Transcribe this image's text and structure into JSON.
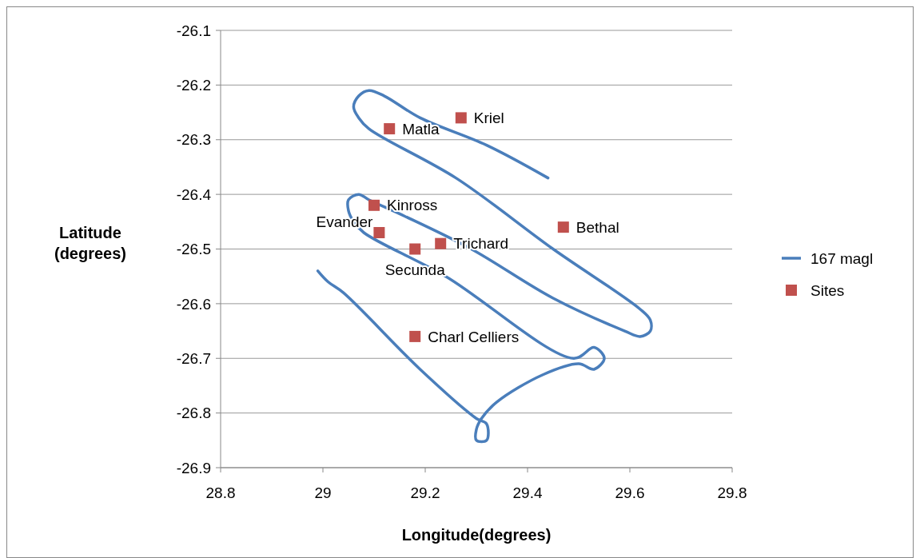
{
  "chart_data": {
    "type": "scatter",
    "xlabel": "Longitude(degrees)",
    "ylabel": "Latitude (degrees)",
    "xlim": [
      28.8,
      29.8
    ],
    "xticks": [
      28.8,
      29,
      29.2,
      29.4,
      29.6,
      29.8
    ],
    "ylim": [
      -26.9,
      -26.1
    ],
    "yticks": [
      -26.9,
      -26.8,
      -26.7,
      -26.6,
      -26.5,
      -26.4,
      -26.3,
      -26.2,
      -26.1
    ],
    "grid": "y",
    "legend": "right",
    "series": [
      {
        "name": "167 magl",
        "type": "line",
        "color": "#4a7ebb",
        "marker": "none",
        "line_style": "solid",
        "x": [
          29.44,
          29.32,
          29.19,
          29.12,
          29.09,
          29.07,
          29.06,
          29.07,
          29.09,
          29.26,
          29.45,
          29.62,
          29.64,
          29.64,
          29.62,
          29.59,
          29.45,
          29.29,
          29.16,
          29.09,
          29.07,
          29.05,
          29.05,
          29.06,
          29.08,
          29.24,
          29.49,
          29.53,
          29.55,
          29.53,
          29.5,
          29.43,
          29.34,
          29.31,
          29.3,
          29.3,
          29.32,
          29.32,
          29.3,
          29.19,
          29.04,
          29.01,
          28.99
        ],
        "values": [
          -26.37,
          -26.31,
          -26.26,
          -26.22,
          -26.21,
          -26.22,
          -26.24,
          -26.26,
          -26.28,
          -26.37,
          -26.5,
          -26.61,
          -26.63,
          -26.65,
          -26.66,
          -26.65,
          -26.59,
          -26.5,
          -26.44,
          -26.41,
          -26.4,
          -26.41,
          -26.43,
          -26.45,
          -26.47,
          -26.55,
          -26.7,
          -26.68,
          -26.7,
          -26.72,
          -26.71,
          -26.73,
          -26.78,
          -26.81,
          -26.83,
          -26.85,
          -26.85,
          -26.82,
          -26.81,
          -26.72,
          -26.58,
          -26.56,
          -26.54
        ]
      },
      {
        "name": "Sites",
        "color": "#c0504d",
        "marker": "square",
        "x": [
          29.27,
          29.13,
          29.1,
          29.11,
          29.18,
          29.23,
          29.47,
          29.18
        ],
        "values": [
          -26.26,
          -26.28,
          -26.42,
          -26.47,
          -26.5,
          -26.49,
          -26.46,
          -26.66
        ],
        "value_labels": [
          "Kriel",
          "Matla",
          "Kinross",
          "Evander",
          "Secunda",
          "Trichard",
          "Bethal",
          "Charl Celliers"
        ]
      }
    ]
  }
}
